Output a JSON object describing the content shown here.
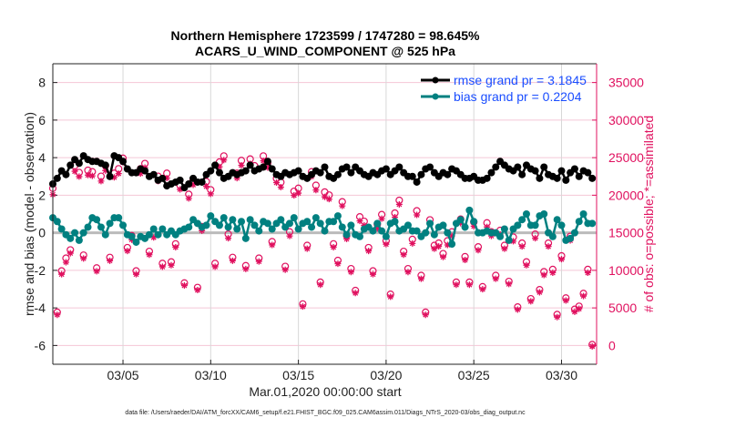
{
  "chart_data": {
    "type": "line",
    "title": "Northern Hemisphere 1723599 / 1747280 = 98.645%",
    "subtitle": "ACARS_U_WIND_COMPONENT @ 525 hPa",
    "xlabel": "Mar.01,2020 00:00:00 start",
    "ylabel": "rmse and bias (model - observation)",
    "y2label": "# of obs: o=possible; *=assimilated",
    "footnote": "data file: /Users/raeder/DAI/ATM_forcXX/CAM6_setup/f.e21.FHIST_BGC.f09_025.CAM6assim.011/Diags_NTrS_2020-03/obs_diag_output.nc",
    "x_start": "2020-03-01 00:00",
    "x_interval": "6 hours",
    "xlim_days": [
      0,
      31
    ],
    "x_ticks": [
      {
        "day": 4,
        "label": "03/05"
      },
      {
        "day": 9,
        "label": "03/10"
      },
      {
        "day": 14,
        "label": "03/15"
      },
      {
        "day": 19,
        "label": "03/20"
      },
      {
        "day": 24,
        "label": "03/25"
      },
      {
        "day": 29,
        "label": "03/30"
      }
    ],
    "ylim": [
      -7,
      9
    ],
    "y_ticks": [
      "-6",
      "-4",
      "-2",
      "0",
      "2",
      "4",
      "6",
      "8"
    ],
    "y2lim": [
      -2500,
      37500
    ],
    "y2_ticks": [
      "0",
      "5000",
      "10000",
      "15000",
      "20000",
      "25000",
      "30000",
      "35000"
    ],
    "grid": true,
    "legend_position": "top-right",
    "colors": {
      "rmse": "#000000",
      "bias": "#008080",
      "obs": "#e0115f",
      "legend_text": "#1a4dff",
      "zero_line": "#bbbbbb"
    },
    "series": [
      {
        "name": "rmse grand pr = 3.1845",
        "values": [
          2.6,
          2.9,
          3.3,
          3.1,
          3.6,
          3.9,
          3.7,
          4.1,
          3.9,
          3.8,
          3.8,
          3.7,
          3.6,
          3.0,
          4.1,
          4.0,
          3.8,
          3.4,
          3.2,
          3.2,
          3.4,
          3.3,
          3.0,
          3.1,
          2.8,
          2.9,
          2.5,
          2.6,
          2.7,
          2.8,
          2.4,
          2.6,
          2.9,
          2.7,
          2.7,
          3.1,
          3.3,
          3.6,
          3.2,
          2.9,
          3.0,
          3.2,
          3.1,
          3.2,
          3.3,
          3.6,
          3.3,
          3.4,
          3.5,
          3.8,
          3.4,
          3.1,
          3.0,
          3.2,
          3.1,
          3.2,
          3.3,
          3.0,
          2.9,
          3.1,
          3.3,
          3.2,
          3.5,
          3.0,
          2.9,
          3.1,
          3.4,
          3.5,
          3.2,
          3.5,
          3.3,
          3.1,
          3.0,
          3.2,
          3.1,
          3.3,
          3.4,
          3.1,
          3.3,
          3.5,
          3.2,
          3.0,
          3.0,
          2.7,
          3.1,
          3.4,
          3.5,
          3.2,
          3.0,
          3.2,
          3.1,
          3.4,
          3.3,
          3.1,
          2.9,
          2.9,
          3.0,
          2.8,
          2.8,
          2.9,
          3.2,
          3.5,
          3.8,
          3.6,
          3.4,
          3.3,
          3.5,
          3.1,
          3.6,
          3.4,
          3.3,
          2.9,
          3.5,
          3.1,
          3.0,
          2.9,
          3.3,
          2.8,
          3.2,
          3.4,
          3.0,
          3.3,
          3.2,
          2.9
        ]
      },
      {
        "name": "bias grand pr = 0.2204",
        "values": [
          0.8,
          0.6,
          0.2,
          -0.1,
          -0.3,
          0.0,
          -0.4,
          0.0,
          0.3,
          0.8,
          0.7,
          0.3,
          -0.1,
          0.5,
          0.8,
          0.8,
          0.4,
          -0.1,
          -0.2,
          -0.5,
          -0.2,
          -0.3,
          -0.1,
          0.2,
          -0.1,
          0.2,
          -0.1,
          0.1,
          -0.1,
          0.1,
          0.2,
          0.3,
          0.7,
          0.5,
          0.3,
          0.4,
          0.9,
          0.6,
          0.4,
          0.8,
          0.3,
          0.7,
          0.2,
          0.6,
          -0.3,
          0.7,
          0.4,
          0.1,
          0.6,
          0.5,
          0.2,
          0.5,
          0.7,
          0.3,
          0.5,
          0.8,
          0.2,
          0.5,
          0.6,
          0.3,
          0.8,
          0.5,
          0.1,
          0.6,
          0.6,
          0.9,
          0.3,
          -0.1,
          0.4,
          -0.1,
          -0.2,
          0.2,
          0.3,
          0.1,
          0.5,
          0.1,
          -0.2,
          0.5,
          0.6,
          0.1,
          0.2,
          0.4,
          0.1,
          0.1,
          -0.2,
          0.0,
          0.5,
          -0.1,
          0.3,
          0.4,
          0.0,
          -0.6,
          0.5,
          0.7,
          0.3,
          1.2,
          0.6,
          0.0,
          0.0,
          0.1,
          0.0,
          0.0,
          -0.2,
          0.2,
          -0.4,
          0.2,
          0.4,
          0.7,
          1.0,
          0.4,
          0.4,
          0.9,
          1.0,
          0.0,
          -0.2,
          0.7,
          0.4,
          -0.4,
          -0.3,
          0.0,
          0.6,
          1.0,
          0.5,
          0.5
        ]
      },
      {
        "name": "o=possible",
        "axis": "right",
        "values": [
          20800,
          4300,
          9800,
          11500,
          12600,
          23800,
          22900,
          11900,
          23200,
          23000,
          10200,
          22400,
          23800,
          11600,
          22800,
          23400,
          24800,
          12900,
          14500,
          9800,
          23400,
          24100,
          12400,
          14800,
          22400,
          10800,
          22800,
          11000,
          13400,
          21200,
          8200,
          20000,
          21900,
          7600,
          15700,
          21700,
          20600,
          10800,
          24300,
          25100,
          14700,
          11600,
          22800,
          24500,
          10500,
          24700,
          23800,
          11500,
          25100,
          24200,
          13700,
          22100,
          21600,
          10400,
          15000,
          20400,
          20800,
          5400,
          13200,
          23000,
          21200,
          8300,
          20300,
          19900,
          13400,
          11200,
          19000,
          14500,
          10100,
          7200,
          17000,
          16400,
          12900,
          9800,
          16000,
          17300,
          13800,
          6700,
          17500,
          19200,
          12400,
          10100,
          14000,
          17800,
          9200,
          4300,
          16600,
          13200,
          13500,
          12100,
          13800,
          15000,
          8300,
          16700,
          11700,
          8300,
          16300,
          13000,
          7700,
          16200,
          15000,
          9200,
          15200,
          13200,
          8400,
          14300,
          5000,
          13500,
          11000,
          6100,
          14700,
          7300,
          9700,
          13500,
          10000,
          4000,
          11800,
          6200,
          14400,
          4700,
          5100,
          6800,
          10000,
          0
        ]
      },
      {
        "name": "*=assimilated",
        "axis": "right",
        "values": [
          20200,
          4200,
          9600,
          11200,
          12400,
          23300,
          22600,
          11700,
          22800,
          22700,
          10000,
          22000,
          23400,
          11400,
          22500,
          23000,
          24500,
          12700,
          14200,
          9600,
          23000,
          23800,
          12200,
          14500,
          22000,
          10600,
          22400,
          10800,
          13200,
          20900,
          8100,
          19700,
          21500,
          7500,
          15400,
          21300,
          20300,
          10600,
          23900,
          24800,
          14400,
          11400,
          22400,
          24100,
          10300,
          24300,
          23400,
          11300,
          24700,
          23800,
          13500,
          21800,
          21200,
          10200,
          14700,
          20100,
          20400,
          5300,
          13000,
          22600,
          20800,
          8200,
          19900,
          19600,
          13200,
          11000,
          18700,
          14300,
          9900,
          7100,
          16700,
          16100,
          12700,
          9600,
          15700,
          17000,
          13600,
          6600,
          17200,
          18900,
          12200,
          9900,
          13700,
          17500,
          9000,
          4200,
          16300,
          13000,
          13300,
          11900,
          13500,
          14700,
          8200,
          16400,
          11500,
          8200,
          16000,
          12800,
          7600,
          15900,
          14700,
          9000,
          14900,
          13000,
          8300,
          14000,
          4900,
          13300,
          10800,
          6000,
          14400,
          7200,
          9500,
          13300,
          9800,
          3900,
          11600,
          6100,
          14100,
          4600,
          5000,
          6700,
          9800,
          0
        ]
      }
    ]
  }
}
